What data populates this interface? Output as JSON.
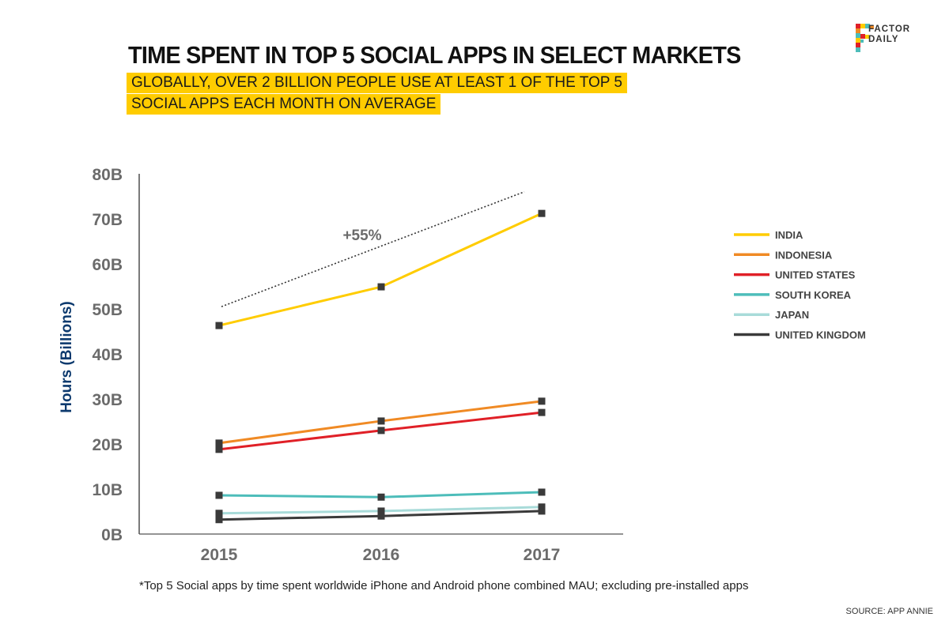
{
  "header": {
    "title": "TIME SPENT IN TOP 5 SOCIAL APPS IN SELECT MARKETS",
    "subtitle_line1": "GLOBALLY, OVER 2 BILLION PEOPLE USE AT LEAST 1 OF THE TOP 5",
    "subtitle_line2": "SOCIAL APPS EACH MONTH ON AVERAGE",
    "highlight_color": "#ffcc00"
  },
  "logo": {
    "line1": "FACTOR",
    "line2": "DAILY",
    "icon": "factor-daily-f-logo-icon"
  },
  "chart_data": {
    "type": "line",
    "title": "TIME SPENT IN TOP 5 SOCIAL APPS IN SELECT MARKETS",
    "xlabel": "",
    "ylabel": "Hours (Billions)",
    "x": [
      "2015",
      "2016",
      "2017"
    ],
    "ylim": [
      0,
      80
    ],
    "yticks": [
      0,
      10,
      20,
      30,
      40,
      50,
      60,
      70,
      80
    ],
    "ytick_labels": [
      "0B",
      "10B",
      "20B",
      "30B",
      "40B",
      "50B",
      "60B",
      "70B",
      "80B"
    ],
    "grid": false,
    "legend_position": "right",
    "marker": "square",
    "marker_color": "#3a3a3a",
    "series": [
      {
        "name": "INDIA",
        "color": "#ffcc00",
        "values": [
          46.3,
          54.9,
          71.2
        ]
      },
      {
        "name": "INDONESIA",
        "color": "#f08a24",
        "values": [
          20.2,
          25.1,
          29.5
        ]
      },
      {
        "name": "UNITED STATES",
        "color": "#e02027",
        "values": [
          18.8,
          23.0,
          27.0
        ]
      },
      {
        "name": "SOUTH KOREA",
        "color": "#4dbdba",
        "values": [
          8.6,
          8.2,
          9.3
        ]
      },
      {
        "name": "JAPAN",
        "color": "#a8dbd9",
        "values": [
          4.6,
          5.1,
          6.0
        ]
      },
      {
        "name": "UNITED KINGDOM",
        "color": "#3a3a3a",
        "values": [
          3.2,
          4.0,
          5.1
        ]
      }
    ],
    "annotations": [
      {
        "type": "dotted-trend",
        "from": {
          "x": "2015",
          "y": 50.5
        },
        "to": {
          "x": "2017",
          "y": 76
        },
        "label": "+55%"
      }
    ]
  },
  "footnote": "*Top 5 Social apps  by time spent worldwide iPhone and Android phone combined MAU; excluding pre-installed apps",
  "source": "SOURCE: APP ANNIE"
}
